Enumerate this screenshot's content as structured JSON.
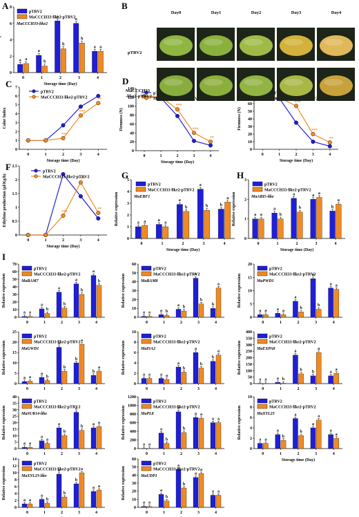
{
  "colors": {
    "ptrv2": "#1f1fd6",
    "oe": "#f08a24",
    "black": "#000000"
  },
  "series_names": [
    "pTRV2",
    "MaCCCH33-like2-pTRV2"
  ],
  "photo": {
    "label": "B",
    "days": [
      "Day0",
      "Day1",
      "Day2",
      "Day3",
      "Day4"
    ],
    "rows": [
      "pTRV2",
      "MaCCCH33 -like2-pTRV2"
    ],
    "row1_text": "pTRV2",
    "row2_line1": "MaCCCH33",
    "row2_line2": "-like2-pTRV2"
  },
  "chart_data": [
    {
      "id": "A",
      "type": "bar",
      "label": "A",
      "gene": "MaCCCH33-like2",
      "xlabel": "Storage time (Day)",
      "ylabel": "Relative expression",
      "categories": [
        "0",
        "1",
        "2",
        "3",
        "4"
      ],
      "ylim": [
        0,
        8
      ],
      "yticks": [
        0,
        2,
        4,
        6,
        8
      ],
      "legend": [
        "pTRV2",
        "MaCCCH33-like2-pTRV2"
      ],
      "series": [
        {
          "values": [
            1,
            2.1,
            6.3,
            6.0,
            2.6
          ],
          "sig": [
            "a",
            "a",
            "a",
            "a",
            "a"
          ]
        },
        {
          "values": [
            1.1,
            0.8,
            2.9,
            3.6,
            2.6
          ],
          "sig": [
            "a",
            "b",
            "b",
            "b",
            "a"
          ]
        }
      ]
    },
    {
      "id": "C",
      "type": "line",
      "label": "C",
      "note": "",
      "xlabel": "Storage time (Day)",
      "ylabel": "Color Index",
      "x": [
        "0",
        "1",
        "2",
        "3",
        "4"
      ],
      "ylim": [
        0,
        7
      ],
      "yticks": [
        0,
        1,
        2,
        3,
        4,
        5,
        6,
        7
      ],
      "legend": [
        "pTRV2",
        "MaCCCH33-like2-pTRV2"
      ],
      "series": [
        {
          "values": [
            1,
            1,
            2.7,
            4.8,
            6.0
          ],
          "sig": [
            "",
            "",
            "",
            "",
            ""
          ]
        },
        {
          "values": [
            1,
            1,
            1.25,
            3.8,
            5.2
          ],
          "sig": [
            "",
            "",
            "***",
            "***",
            "**"
          ]
        }
      ]
    },
    {
      "id": "D",
      "type": "line",
      "label": "D",
      "note": "Fruit",
      "xlabel": "Storage time (Day)",
      "ylabel": "Firmness (N)",
      "x": [
        "0",
        "1",
        "2",
        "3",
        "4"
      ],
      "ylim": [
        0,
        140
      ],
      "yticks": [
        0,
        20,
        40,
        60,
        80,
        100,
        120,
        140
      ],
      "legend": [
        "pTRV2",
        "MaCCCH33-like2-pTRV2"
      ],
      "series": [
        {
          "values": [
            122,
            119,
            78,
            22,
            12
          ],
          "sig": [
            "",
            "",
            "",
            "",
            ""
          ]
        },
        {
          "values": [
            122,
            121,
            93,
            40,
            20
          ],
          "sig": [
            "",
            "",
            "***",
            "***",
            "**"
          ]
        }
      ]
    },
    {
      "id": "E",
      "type": "line",
      "label": "E",
      "note": "Pulp",
      "xlabel": "Storage time (Day)",
      "ylabel": "Firmness (N)",
      "x": [
        "0",
        "1",
        "2",
        "3",
        "4"
      ],
      "ylim": [
        0,
        80
      ],
      "yticks": [
        0,
        10,
        20,
        30,
        40,
        50,
        60,
        70,
        80
      ],
      "legend": [
        "pTRV2",
        "MaCCCH33-like2-pTRV2"
      ],
      "series": [
        {
          "values": [
            68,
            67,
            35,
            10,
            4
          ],
          "sig": [
            "",
            "",
            "",
            "",
            ""
          ]
        },
        {
          "values": [
            69,
            68,
            57,
            20,
            9
          ],
          "sig": [
            "",
            "",
            "***",
            "***",
            "**"
          ]
        }
      ]
    },
    {
      "id": "F",
      "type": "line",
      "label": "F",
      "note": "",
      "xlabel": "Storage time (Day)",
      "ylabel": "Ethylene production (μl/Kg/h)",
      "x": [
        "0",
        "1",
        "2",
        "3",
        "4"
      ],
      "ylim": [
        0,
        2.5
      ],
      "yticks": [
        0,
        0.5,
        1.0,
        1.5,
        2.0,
        2.5
      ],
      "legend": [
        "pTRV2",
        "MaCCCH33-like2-pTRV2"
      ],
      "series": [
        {
          "values": [
            0,
            0,
            2.2,
            1.4,
            0.6
          ],
          "sig": [
            "",
            "",
            "",
            "",
            ""
          ]
        },
        {
          "values": [
            0,
            0,
            0.7,
            1.9,
            0.8
          ],
          "sig": [
            "",
            "",
            "***",
            "***",
            "**"
          ]
        }
      ]
    },
    {
      "id": "G",
      "type": "bar",
      "label": "G",
      "gene": "MaEBF1",
      "xlabel": "Storage time (Day)",
      "ylabel": "Relative expression",
      "categories": [
        "0",
        "1",
        "2",
        "3",
        "4"
      ],
      "ylim": [
        0,
        5
      ],
      "yticks": [
        0,
        1,
        2,
        3,
        4,
        5
      ],
      "legend": [
        "pTRV2",
        "MaCCCH33-like2-pTRV2"
      ],
      "series": [
        {
          "values": [
            1,
            1.2,
            2.9,
            4.2,
            2.5
          ],
          "sig": [
            "a",
            "a",
            "a",
            "a",
            "b"
          ]
        },
        {
          "values": [
            1.1,
            1.0,
            2.3,
            2.4,
            3.1
          ],
          "sig": [
            "a",
            "a",
            "b",
            "b",
            "a"
          ]
        }
      ]
    },
    {
      "id": "H",
      "type": "bar",
      "label": "H",
      "gene": "MaABI5-like",
      "xlabel": "Storage time (Day)",
      "ylabel": "Relative expression",
      "categories": [
        "0",
        "1",
        "2",
        "3",
        "4"
      ],
      "ylim": [
        0,
        3
      ],
      "yticks": [
        0,
        1,
        2,
        3
      ],
      "legend": [
        "pTRV2",
        "MaCCCH33-like2-pTRV2"
      ],
      "series": [
        {
          "values": [
            1,
            1.3,
            2.05,
            2.0,
            1.4
          ],
          "sig": [
            "a",
            "a",
            "a",
            "a",
            "b"
          ]
        },
        {
          "values": [
            1.0,
            1.0,
            1.35,
            2.1,
            1.75
          ],
          "sig": [
            "a",
            "b",
            "b",
            "a",
            "a"
          ]
        }
      ]
    },
    {
      "id": "I1",
      "type": "bar",
      "label": "I",
      "gene": "MaBAM7",
      "xlabel": "",
      "ylabel": "Relative expression",
      "categories": [
        "0",
        "1",
        "2",
        "3",
        "4"
      ],
      "ylim": [
        0,
        70
      ],
      "yticks": [
        0,
        10,
        20,
        30,
        40,
        50,
        60,
        70
      ],
      "legend": [
        "pTRV2",
        "MaCCCH33-like2-pTRV2"
      ],
      "series": [
        {
          "values": [
            1,
            11,
            33,
            44,
            55
          ],
          "sig": [
            "a",
            "a",
            "a",
            "a",
            "a"
          ]
        },
        {
          "values": [
            1,
            5,
            12,
            30,
            42
          ],
          "sig": [
            "a",
            "b",
            "b",
            "b",
            "b"
          ]
        }
      ]
    },
    {
      "id": "I2",
      "type": "bar",
      "label": "",
      "gene": "MaBAM8",
      "xlabel": "",
      "ylabel": "Relative expression",
      "categories": [
        "0",
        "1",
        "2",
        "3",
        "4"
      ],
      "ylim": [
        0,
        60
      ],
      "yticks": [
        0,
        10,
        20,
        30,
        40,
        50,
        60
      ],
      "legend": [
        "pTRV2",
        "MaCCCH33-like2-pTRV2"
      ],
      "series": [
        {
          "values": [
            1,
            3,
            9,
            44,
            10
          ],
          "sig": [
            "a",
            "a",
            "a",
            "a",
            "b"
          ]
        },
        {
          "values": [
            1,
            2,
            7,
            15,
            33
          ],
          "sig": [
            "a",
            "b",
            "b",
            "b",
            "a"
          ]
        }
      ]
    },
    {
      "id": "I3",
      "type": "bar",
      "label": "",
      "gene": "MaPWD1",
      "xlabel": "",
      "ylabel": "Relative expression",
      "categories": [
        "0",
        "1",
        "2",
        "3",
        "4"
      ],
      "ylim": [
        0,
        20
      ],
      "yticks": [
        0,
        5,
        10,
        15,
        20
      ],
      "legend": [
        "pTRV2",
        "MaCCCH33-like2-pTRV2"
      ],
      "series": [
        {
          "values": [
            1,
            1.5,
            6,
            14.5,
            11
          ],
          "sig": [
            "a",
            "a",
            "a",
            "a",
            "a"
          ]
        },
        {
          "values": [
            1,
            1,
            2,
            3,
            10.5
          ],
          "sig": [
            "a",
            "a",
            "b",
            "b",
            "a"
          ]
        }
      ]
    },
    {
      "id": "I4",
      "type": "bar",
      "label": "",
      "gene": "MaGWD1",
      "xlabel": "",
      "ylabel": "Relative expression",
      "categories": [
        "0",
        "1",
        "2",
        "3",
        "4"
      ],
      "ylim": [
        0,
        25
      ],
      "yticks": [
        0,
        5,
        10,
        15,
        20,
        25
      ],
      "legend": [
        "pTRV2",
        "MaCCCH33-like2-pTRV2"
      ],
      "series": [
        {
          "values": [
            1,
            3,
            17.5,
            10,
            4
          ],
          "sig": [
            "a",
            "a",
            "a",
            "b",
            "b"
          ]
        },
        {
          "values": [
            1.2,
            1.5,
            6,
            19,
            6
          ],
          "sig": [
            "a",
            "b",
            "b",
            "a",
            "a"
          ]
        }
      ]
    },
    {
      "id": "I5",
      "type": "bar",
      "label": "",
      "gene": "MaISA2",
      "xlabel": "",
      "ylabel": "Relative expression",
      "categories": [
        "0",
        "1",
        "2",
        "3",
        "4"
      ],
      "ylim": [
        0,
        10
      ],
      "yticks": [
        0,
        2,
        4,
        6,
        8,
        10
      ],
      "legend": [
        "pTRV2",
        "MaCCCH33-like2-pTRV2"
      ],
      "series": [
        {
          "values": [
            1,
            1,
            3.2,
            6,
            4.3
          ],
          "sig": [
            "a",
            "a",
            "a",
            "a",
            "b"
          ]
        },
        {
          "values": [
            1,
            0.8,
            2.2,
            3,
            5.5
          ],
          "sig": [
            "a",
            "a",
            "b",
            "b",
            "a"
          ]
        }
      ]
    },
    {
      "id": "I6",
      "type": "bar",
      "label": "",
      "gene": "MaEXPA8",
      "xlabel": "",
      "ylabel": "Relative expression",
      "categories": [
        "0",
        "1",
        "2",
        "3",
        "4"
      ],
      "ylim": [
        0,
        400
      ],
      "yticks": [
        0,
        50,
        100,
        150,
        200,
        250,
        300,
        350,
        400
      ],
      "legend": [
        "pTRV2",
        "MaCCCH33-like2-pTRV2"
      ],
      "series": [
        {
          "values": [
            2,
            10,
            220,
            60,
            60
          ],
          "sig": [
            "a",
            "a",
            "a",
            "b",
            "a"
          ]
        },
        {
          "values": [
            2,
            3,
            75,
            240,
            80
          ],
          "sig": [
            "a",
            "b",
            "b",
            "a",
            "a"
          ]
        }
      ]
    },
    {
      "id": "I7",
      "type": "bar",
      "label": "",
      "gene": "MaSUR14-like",
      "xlabel": "",
      "ylabel": "Relative expression",
      "categories": [
        "0",
        "1",
        "2",
        "3",
        "4"
      ],
      "ylim": [
        0,
        40
      ],
      "yticks": [
        0,
        5,
        10,
        15,
        20,
        25,
        30,
        35,
        40
      ],
      "legend": [
        "pTRV2",
        "MaCCCH33-like2-pTRV2"
      ],
      "series": [
        {
          "values": [
            1,
            6,
            16,
            28,
            16
          ],
          "sig": [
            "a",
            "a",
            "a",
            "a",
            "a"
          ]
        },
        {
          "values": [
            1,
            4,
            10,
            14,
            17
          ],
          "sig": [
            "a",
            "a",
            "b",
            "b",
            "a"
          ]
        }
      ]
    },
    {
      "id": "I8",
      "type": "bar",
      "label": "",
      "gene": "MaPL8",
      "xlabel": "",
      "ylabel": "Relative expression",
      "categories": [
        "0",
        "1",
        "2",
        "3",
        "4"
      ],
      "ylim": [
        0,
        1200
      ],
      "yticks": [
        0,
        200,
        400,
        600,
        800,
        1000,
        1200
      ],
      "legend": [
        "pTRV2",
        "MaCCCH33-like2-pTRV2"
      ],
      "series": [
        {
          "values": [
            5,
            360,
            850,
            720,
            600
          ],
          "sig": [
            "a",
            "a",
            "a",
            "a",
            "a"
          ]
        },
        {
          "values": [
            5,
            120,
            370,
            700,
            600
          ],
          "sig": [
            "a",
            "b",
            "b",
            "a",
            "a"
          ]
        }
      ]
    },
    {
      "id": "I9",
      "type": "bar",
      "label": "",
      "gene": "MaXYL23",
      "xlabel": "Storage time (Day)",
      "ylabel": "Relative expression",
      "categories": [
        "0",
        "1",
        "2",
        "3",
        "4"
      ],
      "ylim": [
        0,
        10
      ],
      "yticks": [
        0,
        2,
        4,
        6,
        8,
        10
      ],
      "legend": [
        "pTRV2",
        "MaCCCH33-like2-pTRV2"
      ],
      "series": [
        {
          "values": [
            1,
            2.7,
            5.8,
            4,
            2.7
          ],
          "sig": [
            "a",
            "a",
            "a",
            "a",
            "a"
          ]
        },
        {
          "values": [
            1,
            1.6,
            2.5,
            5.5,
            2
          ],
          "sig": [
            "a",
            "b",
            "b",
            "a",
            "a"
          ]
        }
      ]
    },
    {
      "id": "I10",
      "type": "bar",
      "label": "",
      "gene": "MaXYL23-like",
      "xlabel": "Storage time (Day)",
      "ylabel": "Relative expression",
      "categories": [
        "0",
        "1",
        "2",
        "3",
        "4"
      ],
      "ylim": [
        0,
        14
      ],
      "yticks": [
        0,
        2,
        4,
        6,
        8,
        10,
        12,
        14
      ],
      "legend": [
        "pTRV2",
        "MaCCCH33-like2-pTRV2"
      ],
      "series": [
        {
          "values": [
            1,
            2.3,
            9.6,
            6.8,
            4.6
          ],
          "sig": [
            "a",
            "a",
            "a",
            "b",
            "a"
          ]
        },
        {
          "values": [
            1,
            1.2,
            3,
            10,
            5
          ],
          "sig": [
            "a",
            "b",
            "b",
            "a",
            "a"
          ]
        }
      ]
    },
    {
      "id": "I11",
      "type": "bar",
      "label": "",
      "gene": "MaUDP1",
      "xlabel": "Storage time (Day)",
      "ylabel": "Relative expression",
      "categories": [
        "0",
        "1",
        "2",
        "3",
        "4"
      ],
      "ylim": [
        0,
        60
      ],
      "yticks": [
        0,
        10,
        20,
        30,
        40,
        50,
        60
      ],
      "legend": [
        "pTRV2",
        "MaCCCH33-like2-pTRV2"
      ],
      "series": [
        {
          "values": [
            1,
            16,
            47,
            37,
            15
          ],
          "sig": [
            "a",
            "a",
            "a",
            "a",
            "a"
          ]
        },
        {
          "values": [
            1,
            8,
            24,
            42,
            15
          ],
          "sig": [
            "a",
            "b",
            "b",
            "a",
            "a"
          ]
        }
      ]
    }
  ]
}
